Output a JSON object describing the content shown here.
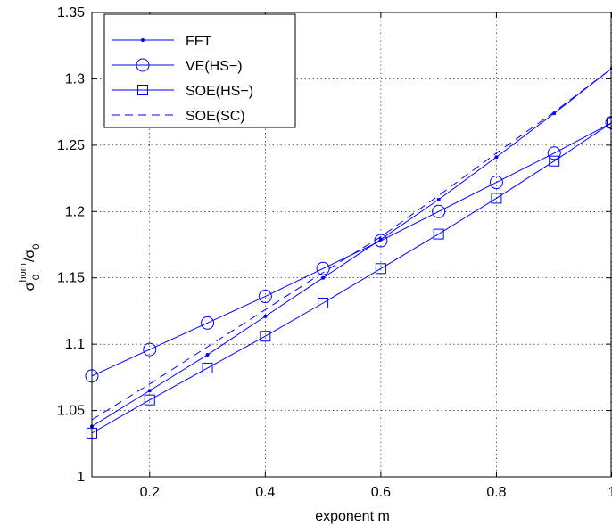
{
  "chart_data": {
    "type": "line",
    "xlabel": "exponent m",
    "ylabel": {
      "base": "σ",
      "sub1": "0",
      "sup1": "hom",
      "sep": "/σ",
      "sub2": "0"
    },
    "xlim": [
      0.1,
      1.0
    ],
    "ylim": [
      1.0,
      1.35
    ],
    "x_ticks": [
      0.2,
      0.4,
      0.6,
      0.8,
      1.0
    ],
    "x_tick_labels": [
      "0.2",
      "0.4",
      "0.6",
      "0.8",
      "1"
    ],
    "y_ticks": [
      1.0,
      1.05,
      1.1,
      1.15,
      1.2,
      1.25,
      1.3,
      1.35
    ],
    "y_tick_labels": [
      "1",
      "1.05",
      "1.1",
      "1.15",
      "1.2",
      "1.25",
      "1.3",
      "1.35"
    ],
    "grid": true,
    "legend_position": "top-left",
    "color": "#0000ff",
    "x": [
      0.1,
      0.2,
      0.3,
      0.4,
      0.5,
      0.6,
      0.7,
      0.8,
      0.9,
      1.0
    ],
    "series": [
      {
        "name": "FFT",
        "marker": "dot",
        "dash": "solid",
        "values": [
          1.038,
          1.065,
          1.092,
          1.121,
          1.15,
          1.179,
          1.209,
          1.241,
          1.274,
          1.308
        ]
      },
      {
        "name": "VE(HS−)",
        "marker": "circle",
        "dash": "solid",
        "values": [
          1.076,
          1.096,
          1.116,
          1.136,
          1.157,
          1.178,
          1.2,
          1.222,
          1.244,
          1.267
        ]
      },
      {
        "name": "SOE(HS−)",
        "marker": "square",
        "dash": "solid",
        "values": [
          1.033,
          1.058,
          1.082,
          1.106,
          1.131,
          1.157,
          1.183,
          1.21,
          1.238,
          1.267
        ]
      },
      {
        "name": "SOE(SC)",
        "marker": "none",
        "dash": "dashed",
        "values": [
          1.043,
          1.07,
          1.098,
          1.126,
          1.154,
          1.181,
          1.212,
          1.244,
          1.275,
          1.308
        ]
      }
    ]
  }
}
